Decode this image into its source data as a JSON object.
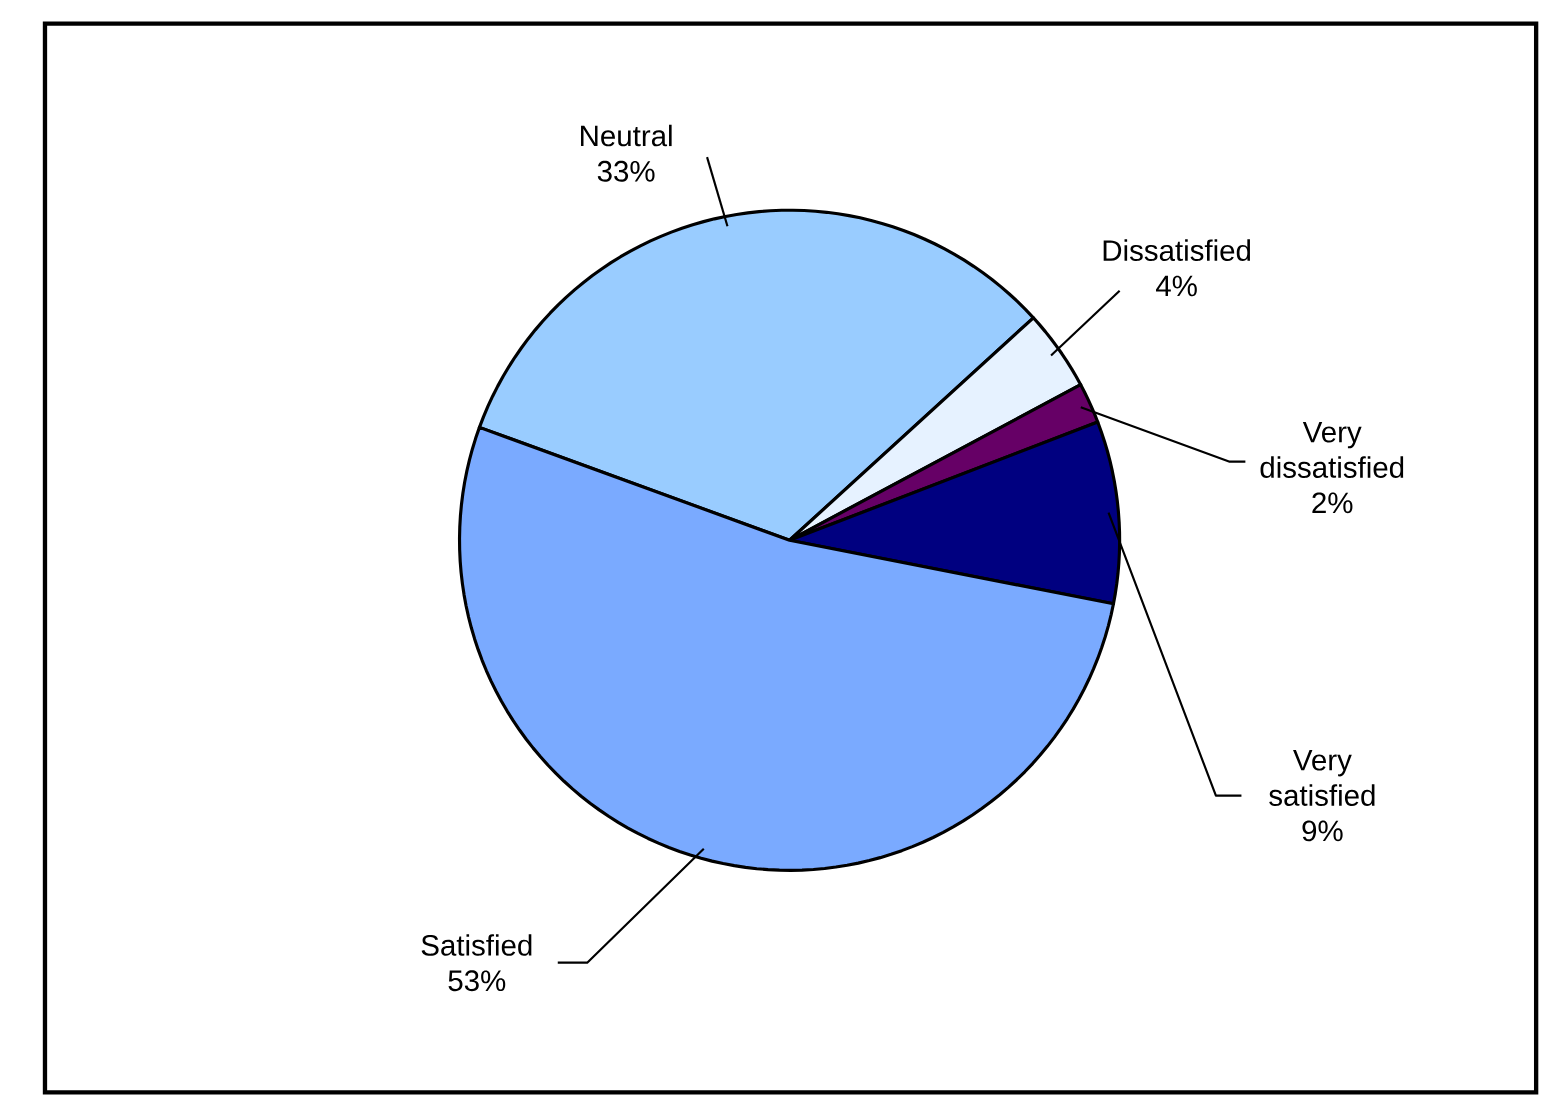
{
  "chart_data": {
    "type": "pie",
    "categories": [
      "Neutral",
      "Dissatisfied",
      "Very dissatisfied",
      "Very satisfied",
      "Satisfied"
    ],
    "values": [
      33,
      4,
      2,
      9,
      53
    ],
    "value_labels": [
      "33%",
      "4%",
      "2%",
      "9%",
      "53%"
    ],
    "colors": [
      "#99ccff",
      "#e6f2ff",
      "#660066",
      "#000080",
      "#7aaaff"
    ]
  }
}
